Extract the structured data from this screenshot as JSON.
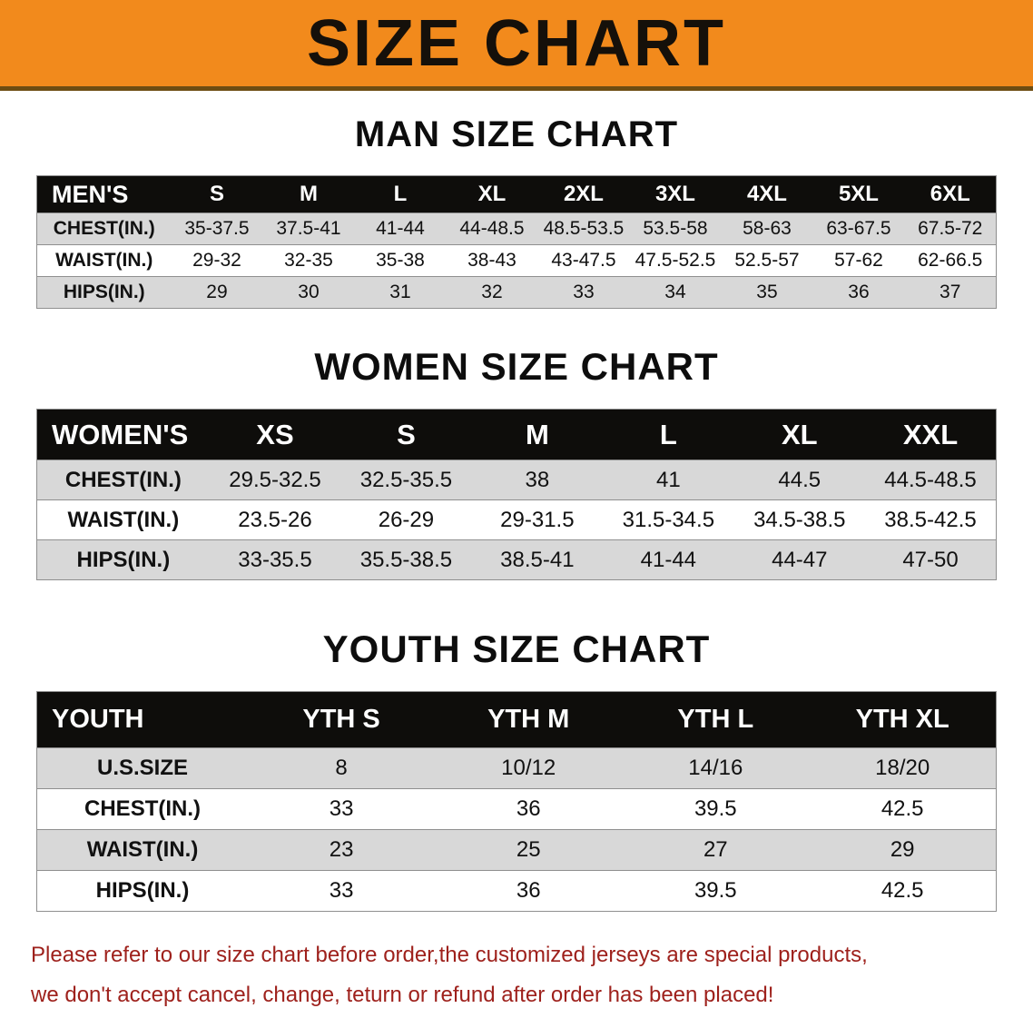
{
  "banner": {
    "title": "SIZE CHART",
    "bg_color": "#F28A1C"
  },
  "sections": {
    "men": {
      "heading": "MAN SIZE CHART",
      "table": {
        "header": [
          "MEN'S",
          "S",
          "M",
          "L",
          "XL",
          "2XL",
          "3XL",
          "4XL",
          "5XL",
          "6XL"
        ],
        "rows": [
          [
            "CHEST(IN.)",
            "35-37.5",
            "37.5-41",
            "41-44",
            "44-48.5",
            "48.5-53.5",
            "53.5-58",
            "58-63",
            "63-67.5",
            "67.5-72"
          ],
          [
            "WAIST(IN.)",
            "29-32",
            "32-35",
            "35-38",
            "38-43",
            "43-47.5",
            "47.5-52.5",
            "52.5-57",
            "57-62",
            "62-66.5"
          ],
          [
            "HIPS(IN.)",
            "29",
            "30",
            "31",
            "32",
            "33",
            "34",
            "35",
            "36",
            "37"
          ]
        ]
      }
    },
    "women": {
      "heading": "WOMEN SIZE CHART",
      "table": {
        "header": [
          "WOMEN'S",
          "XS",
          "S",
          "M",
          "L",
          "XL",
          "XXL"
        ],
        "rows": [
          [
            "CHEST(IN.)",
            "29.5-32.5",
            "32.5-35.5",
            "38",
            "41",
            "44.5",
            "44.5-48.5"
          ],
          [
            "WAIST(IN.)",
            "23.5-26",
            "26-29",
            "29-31.5",
            "31.5-34.5",
            "34.5-38.5",
            "38.5-42.5"
          ],
          [
            "HIPS(IN.)",
            "33-35.5",
            "35.5-38.5",
            "38.5-41",
            "41-44",
            "44-47",
            "47-50"
          ]
        ]
      }
    },
    "youth": {
      "heading": "YOUTH SIZE CHART",
      "table": {
        "header": [
          "YOUTH",
          "YTH S",
          "YTH M",
          "YTH L",
          "YTH XL"
        ],
        "rows": [
          [
            "U.S.SIZE",
            "8",
            "10/12",
            "14/16",
            "18/20"
          ],
          [
            "CHEST(IN.)",
            "33",
            "36",
            "39.5",
            "42.5"
          ],
          [
            "WAIST(IN.)",
            "23",
            "25",
            "27",
            "29"
          ],
          [
            "HIPS(IN.)",
            "33",
            "36",
            "39.5",
            "42.5"
          ]
        ]
      }
    }
  },
  "disclaimer": {
    "line1": "Please refer to our size chart before order,the customized jerseys are special products,",
    "line2": "we don't accept cancel, change, teturn or refund after order has been placed!",
    "color": "#9E211C"
  }
}
